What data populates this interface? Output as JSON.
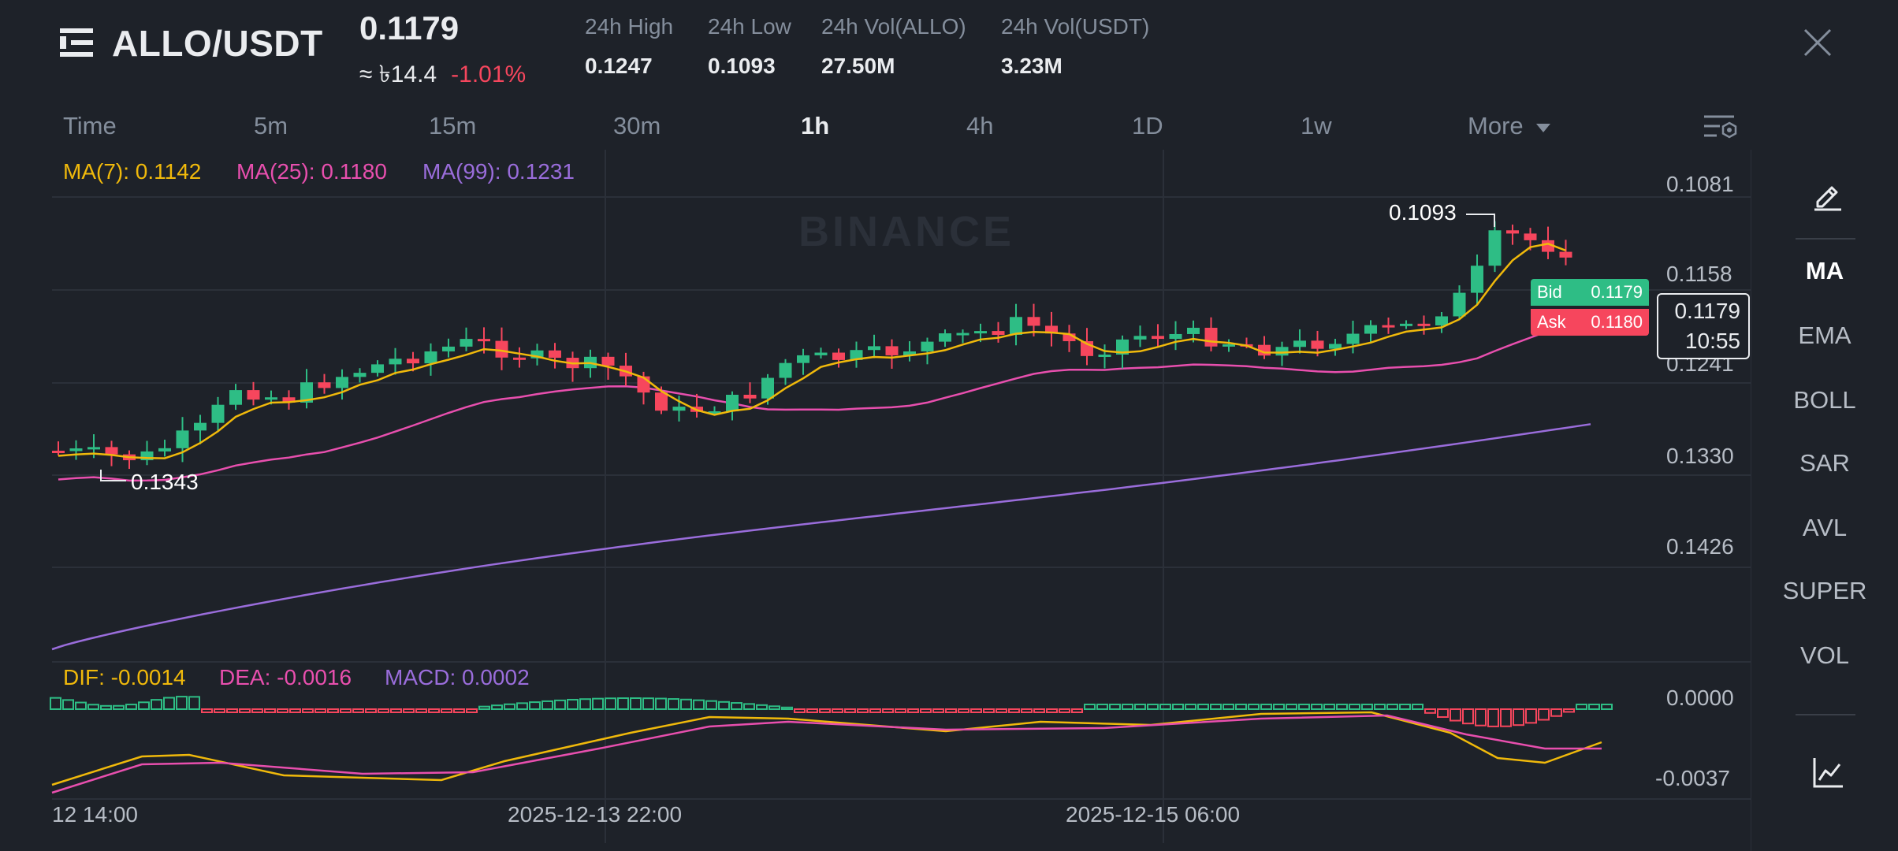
{
  "header": {
    "pair": "ALLO/USDT",
    "last_price": "0.1179",
    "approx_prefix": "≈ ৳14.4",
    "change": "-1.01%",
    "stats": [
      {
        "label": "24h High",
        "value": "0.1247"
      },
      {
        "label": "24h Low",
        "value": "0.1093"
      },
      {
        "label": "24h Vol(ALLO)",
        "value": "27.50M"
      },
      {
        "label": "24h Vol(USDT)",
        "value": "3.23M"
      }
    ]
  },
  "timeframes": {
    "items": [
      "Time",
      "5m",
      "15m",
      "30m",
      "1h",
      "4h",
      "1D",
      "1w",
      "More"
    ],
    "active": "1h"
  },
  "ma_legend": {
    "ma7": "MA(7): 0.1142",
    "ma25": "MA(25): 0.1180",
    "ma99": "MA(99): 0.1231"
  },
  "macd_legend": {
    "dif": "DIF: -0.0014",
    "dea": "DEA: -0.0016",
    "macd": "MACD: 0.0002"
  },
  "price_axis": [
    "0.1081",
    "0.1158",
    "0.1241",
    "0.1330",
    "0.1426"
  ],
  "macd_axis": [
    "0.0000",
    "-0.0037"
  ],
  "time_axis": [
    "12 14:00",
    "2025-12-13 22:00",
    "2025-12-15 06:00"
  ],
  "annotations": {
    "high_marker": "0.1093",
    "low_marker": "0.1343"
  },
  "order_book": {
    "bid_label": "Bid",
    "bid_value": "0.1179",
    "ask_label": "Ask",
    "ask_value": "0.1180",
    "current_price": "0.1179",
    "countdown": "10:55"
  },
  "watermark": "BINANCE",
  "indicators": {
    "items": [
      "MA",
      "EMA",
      "BOLL",
      "SAR",
      "AVL",
      "SUPER",
      "VOL"
    ],
    "active": "MA"
  },
  "colors": {
    "up": "#2ebd85",
    "down": "#f6465d",
    "ma7": "#f0b90b",
    "ma25": "#e84fae",
    "ma99": "#9a6ddb",
    "background": "#1e2229"
  },
  "icons": [
    "menu-icon",
    "close-icon",
    "chart-settings-icon",
    "draw-pencil-icon",
    "chart-line-icon",
    "dropdown-caret-icon"
  ]
}
